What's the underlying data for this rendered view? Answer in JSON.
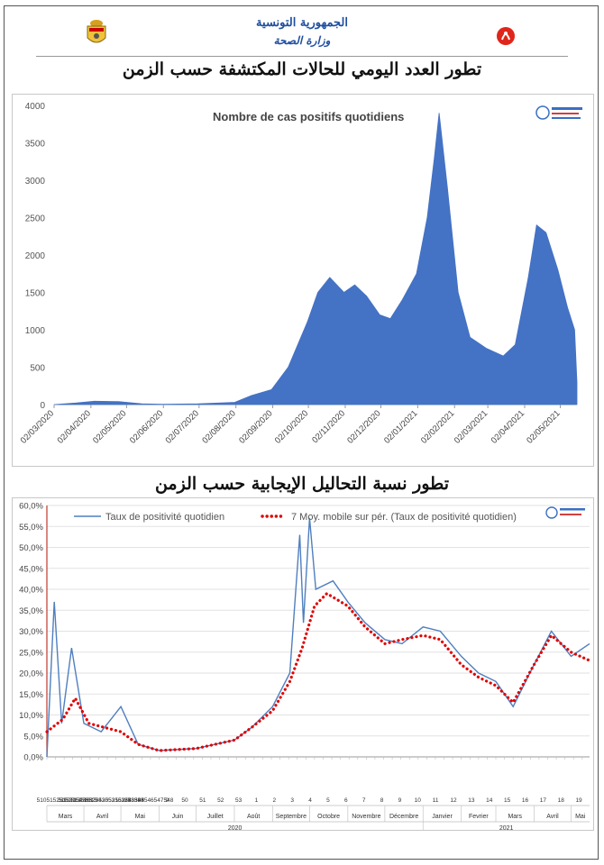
{
  "header": {
    "ministry_line1": "الجمهورية التونسية",
    "ministry_line2": "وزارة الصحة",
    "title1": "تطور العدد اليومي للحالات المكتشفة حسب الزمن",
    "title2": "تطور نسبة التحاليل الإيجابية حسب الزمن"
  },
  "colors": {
    "area": "#4472c4",
    "line": "#4f7fc0",
    "dots": "#e00000",
    "ministry_text": "#1e4fa0"
  },
  "icons": [
    "tunisia-coat-of-arms-icon",
    "ministry-health-logo-icon",
    "observatory-logo-icon"
  ],
  "chart_data": [
    {
      "type": "area",
      "title": "Nombre de cas positifs quotidiens",
      "ylim": [
        0,
        4000
      ],
      "y_ticks": [
        "0",
        "500",
        "1000",
        "1500",
        "2000",
        "2500",
        "3000",
        "3500",
        "4000"
      ],
      "x_ticks": [
        "02/03/2020",
        "02/04/2020",
        "02/05/2020",
        "02/06/2020",
        "02/07/2020",
        "02/08/2020",
        "02/09/2020",
        "02/10/2020",
        "02/11/2020",
        "02/12/2020",
        "02/01/2021",
        "02/02/2021",
        "02/03/2021",
        "02/04/2021",
        "02/05/2021"
      ],
      "x_range": [
        "02/03/2020",
        "16/05/2021"
      ],
      "series_points": [
        [
          "02/03/2020",
          0
        ],
        [
          "20/03/2020",
          20
        ],
        [
          "05/04/2020",
          45
        ],
        [
          "25/04/2020",
          40
        ],
        [
          "15/05/2020",
          10
        ],
        [
          "01/06/2020",
          5
        ],
        [
          "01/07/2020",
          10
        ],
        [
          "01/08/2020",
          30
        ],
        [
          "15/08/2020",
          120
        ],
        [
          "01/09/2020",
          200
        ],
        [
          "15/09/2020",
          500
        ],
        [
          "01/10/2020",
          1100
        ],
        [
          "10/10/2020",
          1500
        ],
        [
          "20/10/2020",
          1700
        ],
        [
          "01/11/2020",
          1500
        ],
        [
          "10/11/2020",
          1600
        ],
        [
          "20/11/2020",
          1450
        ],
        [
          "01/12/2020",
          1200
        ],
        [
          "10/12/2020",
          1150
        ],
        [
          "20/12/2020",
          1400
        ],
        [
          "01/01/2021",
          1750
        ],
        [
          "10/01/2021",
          2500
        ],
        [
          "16/01/2021",
          3300
        ],
        [
          "20/01/2021",
          3900
        ],
        [
          "27/01/2021",
          2900
        ],
        [
          "05/02/2021",
          1500
        ],
        [
          "15/02/2021",
          900
        ],
        [
          "01/03/2021",
          750
        ],
        [
          "15/03/2021",
          650
        ],
        [
          "25/03/2021",
          800
        ],
        [
          "05/04/2021",
          1700
        ],
        [
          "12/04/2021",
          2400
        ],
        [
          "20/04/2021",
          2300
        ],
        [
          "30/04/2021",
          1800
        ],
        [
          "08/05/2021",
          1300
        ],
        [
          "14/05/2021",
          1000
        ],
        [
          "16/05/2021",
          300
        ]
      ]
    },
    {
      "type": "line",
      "ylim": [
        0,
        60
      ],
      "y_ticks": [
        "0,0%",
        "5,0%",
        "10,0%",
        "15,0%",
        "20,0%",
        "25,0%",
        "30,0%",
        "35,0%",
        "40,0%",
        "45,0%",
        "50,0%",
        "55,0%",
        "60,0%"
      ],
      "series": [
        {
          "name": "Taux de positivité quotidien",
          "style": "line",
          "points": [
            [
              "02/03/2020",
              0
            ],
            [
              "08/03/2020",
              37
            ],
            [
              "14/03/2020",
              8
            ],
            [
              "22/03/2020",
              26
            ],
            [
              "01/04/2020",
              8
            ],
            [
              "15/04/2020",
              6
            ],
            [
              "01/05/2020",
              12
            ],
            [
              "15/05/2020",
              3
            ],
            [
              "01/06/2020",
              1.5
            ],
            [
              "01/07/2020",
              2
            ],
            [
              "01/08/2020",
              4
            ],
            [
              "15/08/2020",
              7
            ],
            [
              "01/09/2020",
              12
            ],
            [
              "15/09/2020",
              20
            ],
            [
              "23/09/2020",
              53
            ],
            [
              "26/09/2020",
              32
            ],
            [
              "01/10/2020",
              57
            ],
            [
              "06/10/2020",
              40
            ],
            [
              "20/10/2020",
              42
            ],
            [
              "01/11/2020",
              37
            ],
            [
              "15/11/2020",
              32
            ],
            [
              "01/12/2020",
              28
            ],
            [
              "15/12/2020",
              27
            ],
            [
              "01/01/2021",
              31
            ],
            [
              "15/01/2021",
              30
            ],
            [
              "01/02/2021",
              24
            ],
            [
              "15/02/2021",
              20
            ],
            [
              "01/03/2021",
              18
            ],
            [
              "15/03/2021",
              12
            ],
            [
              "01/04/2021",
              22
            ],
            [
              "15/04/2021",
              30
            ],
            [
              "01/05/2021",
              24
            ],
            [
              "16/05/2021",
              27
            ]
          ]
        },
        {
          "name": "7 Moy. mobile sur pér. (Taux de positivité quotidien)",
          "style": "dotted",
          "points": [
            [
              "02/03/2020",
              6
            ],
            [
              "15/03/2020",
              9
            ],
            [
              "25/03/2020",
              14
            ],
            [
              "05/04/2020",
              8
            ],
            [
              "01/05/2020",
              6
            ],
            [
              "15/05/2020",
              3
            ],
            [
              "01/06/2020",
              1.5
            ],
            [
              "01/07/2020",
              2
            ],
            [
              "01/08/2020",
              4
            ],
            [
              "15/08/2020",
              7
            ],
            [
              "01/09/2020",
              11
            ],
            [
              "15/09/2020",
              18
            ],
            [
              "25/09/2020",
              26
            ],
            [
              "05/10/2020",
              36
            ],
            [
              "15/10/2020",
              39
            ],
            [
              "01/11/2020",
              36
            ],
            [
              "15/11/2020",
              31
            ],
            [
              "01/12/2020",
              27
            ],
            [
              "15/12/2020",
              28
            ],
            [
              "01/01/2021",
              29
            ],
            [
              "15/01/2021",
              28
            ],
            [
              "01/02/2021",
              22
            ],
            [
              "15/02/2021",
              19
            ],
            [
              "01/03/2021",
              17
            ],
            [
              "15/03/2021",
              13
            ],
            [
              "01/04/2021",
              22
            ],
            [
              "15/04/2021",
              29
            ],
            [
              "01/05/2021",
              25
            ],
            [
              "16/05/2021",
              23
            ]
          ]
        }
      ],
      "week_numbers": [
        "51051525353054",
        "515251351815",
        "5152152253254255256257",
        "5852953053153253353",
        "53738394",
        "543545546547548",
        "9",
        "50",
        "51",
        "52",
        "53",
        "1",
        "2",
        "3",
        "4",
        "5",
        "6",
        "7",
        "8",
        "9",
        "10",
        "11",
        "12",
        "13",
        "14",
        "15",
        "16",
        "17",
        "18",
        "19"
      ],
      "months": [
        "Mars",
        "Avril",
        "Mai",
        "Juin",
        "Juillet",
        "Août",
        "Septembre",
        "Octobre",
        "Novembre",
        "Décembre",
        "Janvier",
        "Fevrier",
        "Mars",
        "Avril",
        "Mai"
      ],
      "years": [
        "2020",
        "2021"
      ]
    }
  ]
}
